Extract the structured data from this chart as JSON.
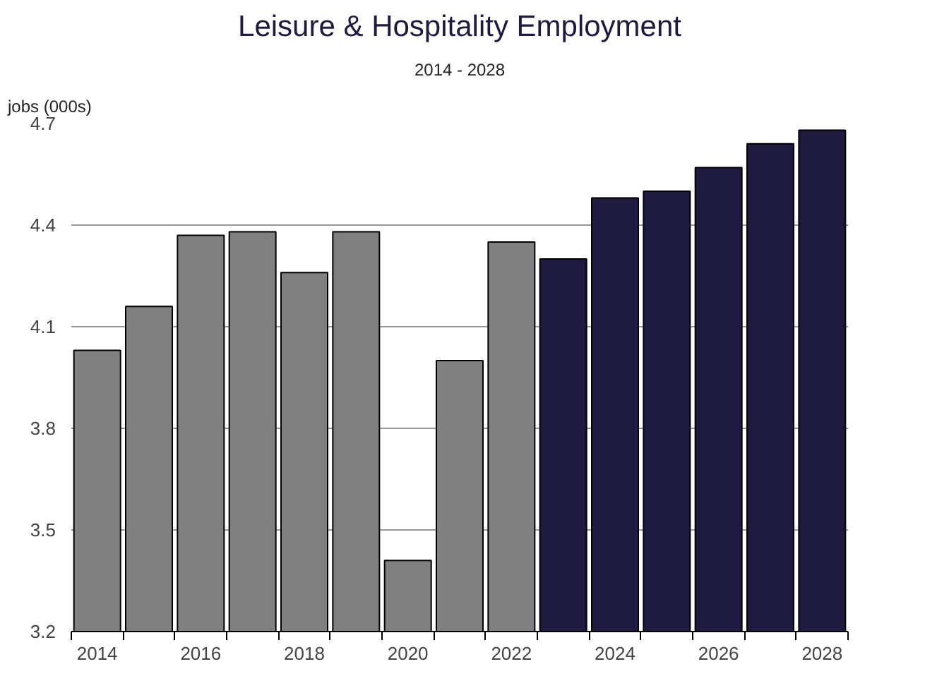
{
  "chart_data": {
    "type": "bar",
    "title": "Leisure & Hospitality Employment",
    "subtitle": "2014 - 2028",
    "ylabel": "jobs (000s)",
    "categories": [
      "2014",
      null,
      "2016",
      null,
      "2018",
      null,
      "2020",
      null,
      "2022",
      null,
      "2024",
      null,
      "2026",
      null,
      "2028"
    ],
    "values": [
      4.03,
      4.16,
      4.37,
      4.38,
      4.26,
      4.38,
      3.41,
      4.0,
      4.35,
      4.3,
      4.48,
      4.5,
      4.57,
      4.64,
      4.68
    ],
    "colors": [
      "#808080",
      "#808080",
      "#808080",
      "#808080",
      "#808080",
      "#808080",
      "#808080",
      "#808080",
      "#808080",
      "#1e1a40",
      "#1e1a40",
      "#1e1a40",
      "#1e1a40",
      "#1e1a40",
      "#1e1a40"
    ],
    "ylim": [
      3.2,
      4.7
    ],
    "yticks": [
      3.2,
      3.5,
      3.8,
      4.1,
      4.4,
      4.7
    ],
    "grid": "y"
  }
}
